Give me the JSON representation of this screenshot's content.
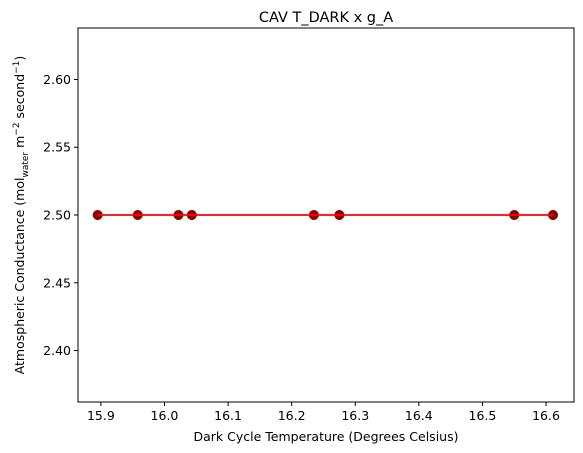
{
  "chart_data": {
    "type": "scatter",
    "title": "CAV T_DARK x g_A",
    "xlabel": "Dark Cycle Temperature (Degrees Celsius)",
    "ylabel": {
      "base": "Atmospheric Conductance (mol",
      "sub": "water",
      "mid": " m",
      "sup1": "−2",
      "mid2": " second",
      "sup2": "−1",
      "end": ")"
    },
    "xlim": [
      15.864,
      16.644
    ],
    "ylim": [
      2.362,
      2.638
    ],
    "xticks": [
      15.9,
      16.0,
      16.1,
      16.2,
      16.3,
      16.4,
      16.5,
      16.6
    ],
    "xtick_labels": [
      "15.9",
      "16.0",
      "16.1",
      "16.2",
      "16.3",
      "16.4",
      "16.5",
      "16.6"
    ],
    "yticks": [
      2.4,
      2.45,
      2.5,
      2.55,
      2.6
    ],
    "ytick_labels": [
      "2.40",
      "2.45",
      "2.50",
      "2.55",
      "2.60"
    ],
    "grid": false,
    "points": {
      "x": [
        15.895,
        15.958,
        16.022,
        16.043,
        16.235,
        16.275,
        16.55,
        16.611
      ],
      "y": [
        2.5,
        2.5,
        2.5,
        2.5,
        2.5,
        2.5,
        2.5,
        2.5
      ]
    },
    "fit_line": {
      "x": [
        15.895,
        16.611
      ],
      "y": [
        2.5,
        2.5
      ]
    },
    "colors": {
      "points": "#8b0000",
      "fit_line": "#ff0000",
      "axes": "#000000"
    }
  }
}
